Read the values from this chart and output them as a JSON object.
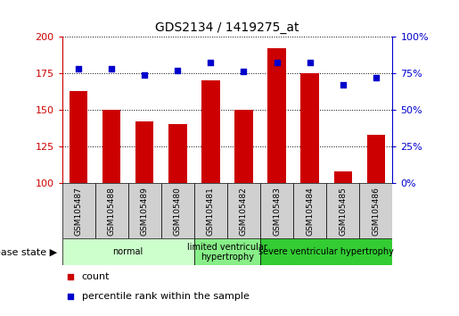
{
  "title": "GDS2134 / 1419275_at",
  "samples": [
    "GSM105487",
    "GSM105488",
    "GSM105489",
    "GSM105480",
    "GSM105481",
    "GSM105482",
    "GSM105483",
    "GSM105484",
    "GSM105485",
    "GSM105486"
  ],
  "bar_values": [
    163,
    150,
    142,
    140,
    170,
    150,
    192,
    175,
    108,
    133
  ],
  "percentile_values": [
    78,
    78,
    74,
    77,
    82,
    76,
    82,
    82,
    67,
    72
  ],
  "bar_color": "#cc0000",
  "percentile_color": "#0000cc",
  "ylim_left": [
    100,
    200
  ],
  "ylim_right": [
    0,
    100
  ],
  "yticks_left": [
    100,
    125,
    150,
    175,
    200
  ],
  "yticks_right": [
    0,
    25,
    50,
    75,
    100
  ],
  "disease_groups": [
    {
      "label": "normal",
      "start": 0,
      "end": 4,
      "color": "#ccffcc"
    },
    {
      "label": "limited ventricular\nhypertrophy",
      "start": 4,
      "end": 6,
      "color": "#88ee88"
    },
    {
      "label": "severe ventricular hypertrophy",
      "start": 6,
      "end": 10,
      "color": "#33cc33"
    }
  ],
  "disease_state_label": "disease state",
  "legend_count_label": "count",
  "legend_percentile_label": "percentile rank within the sample",
  "bar_width": 0.55,
  "xlim": [
    -0.5,
    9.5
  ],
  "background_color": "#ffffff"
}
